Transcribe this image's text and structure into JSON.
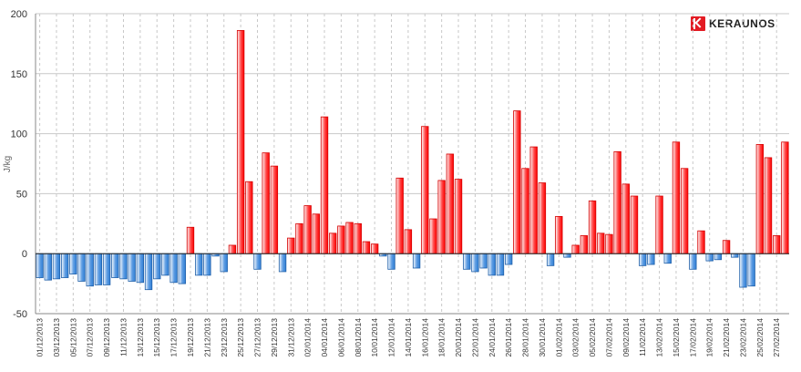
{
  "brand": {
    "name": "KERAUNOS",
    "logo_icon": "keraunos-k-logo-icon"
  },
  "chart_data": {
    "type": "bar",
    "title": "",
    "xlabel": "",
    "ylabel": "J/kg",
    "ylim": [
      -50,
      200
    ],
    "yticks": [
      -50,
      0,
      50,
      100,
      150,
      200
    ],
    "grid": true,
    "colors": {
      "positive": "#ff0000",
      "negative": "#2f7fd6"
    },
    "tick_labels": [
      "01/12/2013",
      "03/12/2013",
      "05/12/2013",
      "07/12/2013",
      "09/12/2013",
      "11/12/2013",
      "13/12/2013",
      "15/12/2013",
      "17/12/2013",
      "19/12/2013",
      "21/12/2013",
      "23/12/2013",
      "25/12/2013",
      "27/12/2013",
      "29/12/2013",
      "31/12/2013",
      "02/01/2014",
      "04/01/2014",
      "06/01/2014",
      "08/01/2014",
      "10/01/2014",
      "12/01/2014",
      "14/01/2014",
      "16/01/2014",
      "18/01/2014",
      "20/01/2014",
      "22/01/2014",
      "24/01/2014",
      "26/01/2014",
      "28/01/2014",
      "30/01/2014",
      "01/02/2014",
      "03/02/2014",
      "05/02/2014",
      "07/02/2014",
      "09/02/2014",
      "11/02/2014",
      "13/02/2014",
      "15/02/2014",
      "17/02/2014",
      "19/02/2014",
      "21/02/2014",
      "23/02/2014",
      "25/02/2014",
      "27/02/2014"
    ],
    "values": [
      -20,
      -22,
      -21,
      -20,
      -17,
      -23,
      -27,
      -26,
      -26,
      -20,
      -21,
      -23,
      -24,
      -30,
      -21,
      -18,
      -24,
      -25,
      22,
      -18,
      -18,
      -2,
      -15,
      7,
      186,
      60,
      -13,
      84,
      73,
      -15,
      13,
      25,
      40,
      33,
      114,
      17,
      23,
      26,
      25,
      10,
      8,
      -2,
      -13,
      63,
      20,
      -12,
      106,
      29,
      61,
      83,
      62,
      -13,
      -15,
      -12,
      -18,
      -18,
      -9,
      119,
      71,
      89,
      59,
      -10,
      31,
      -3,
      7,
      15,
      44,
      17,
      16,
      85,
      58,
      48,
      -10,
      -9,
      48,
      -8,
      93,
      71,
      -13,
      19,
      -6,
      -5,
      11,
      -3,
      -28,
      -27,
      91,
      80,
      15,
      93
    ]
  }
}
